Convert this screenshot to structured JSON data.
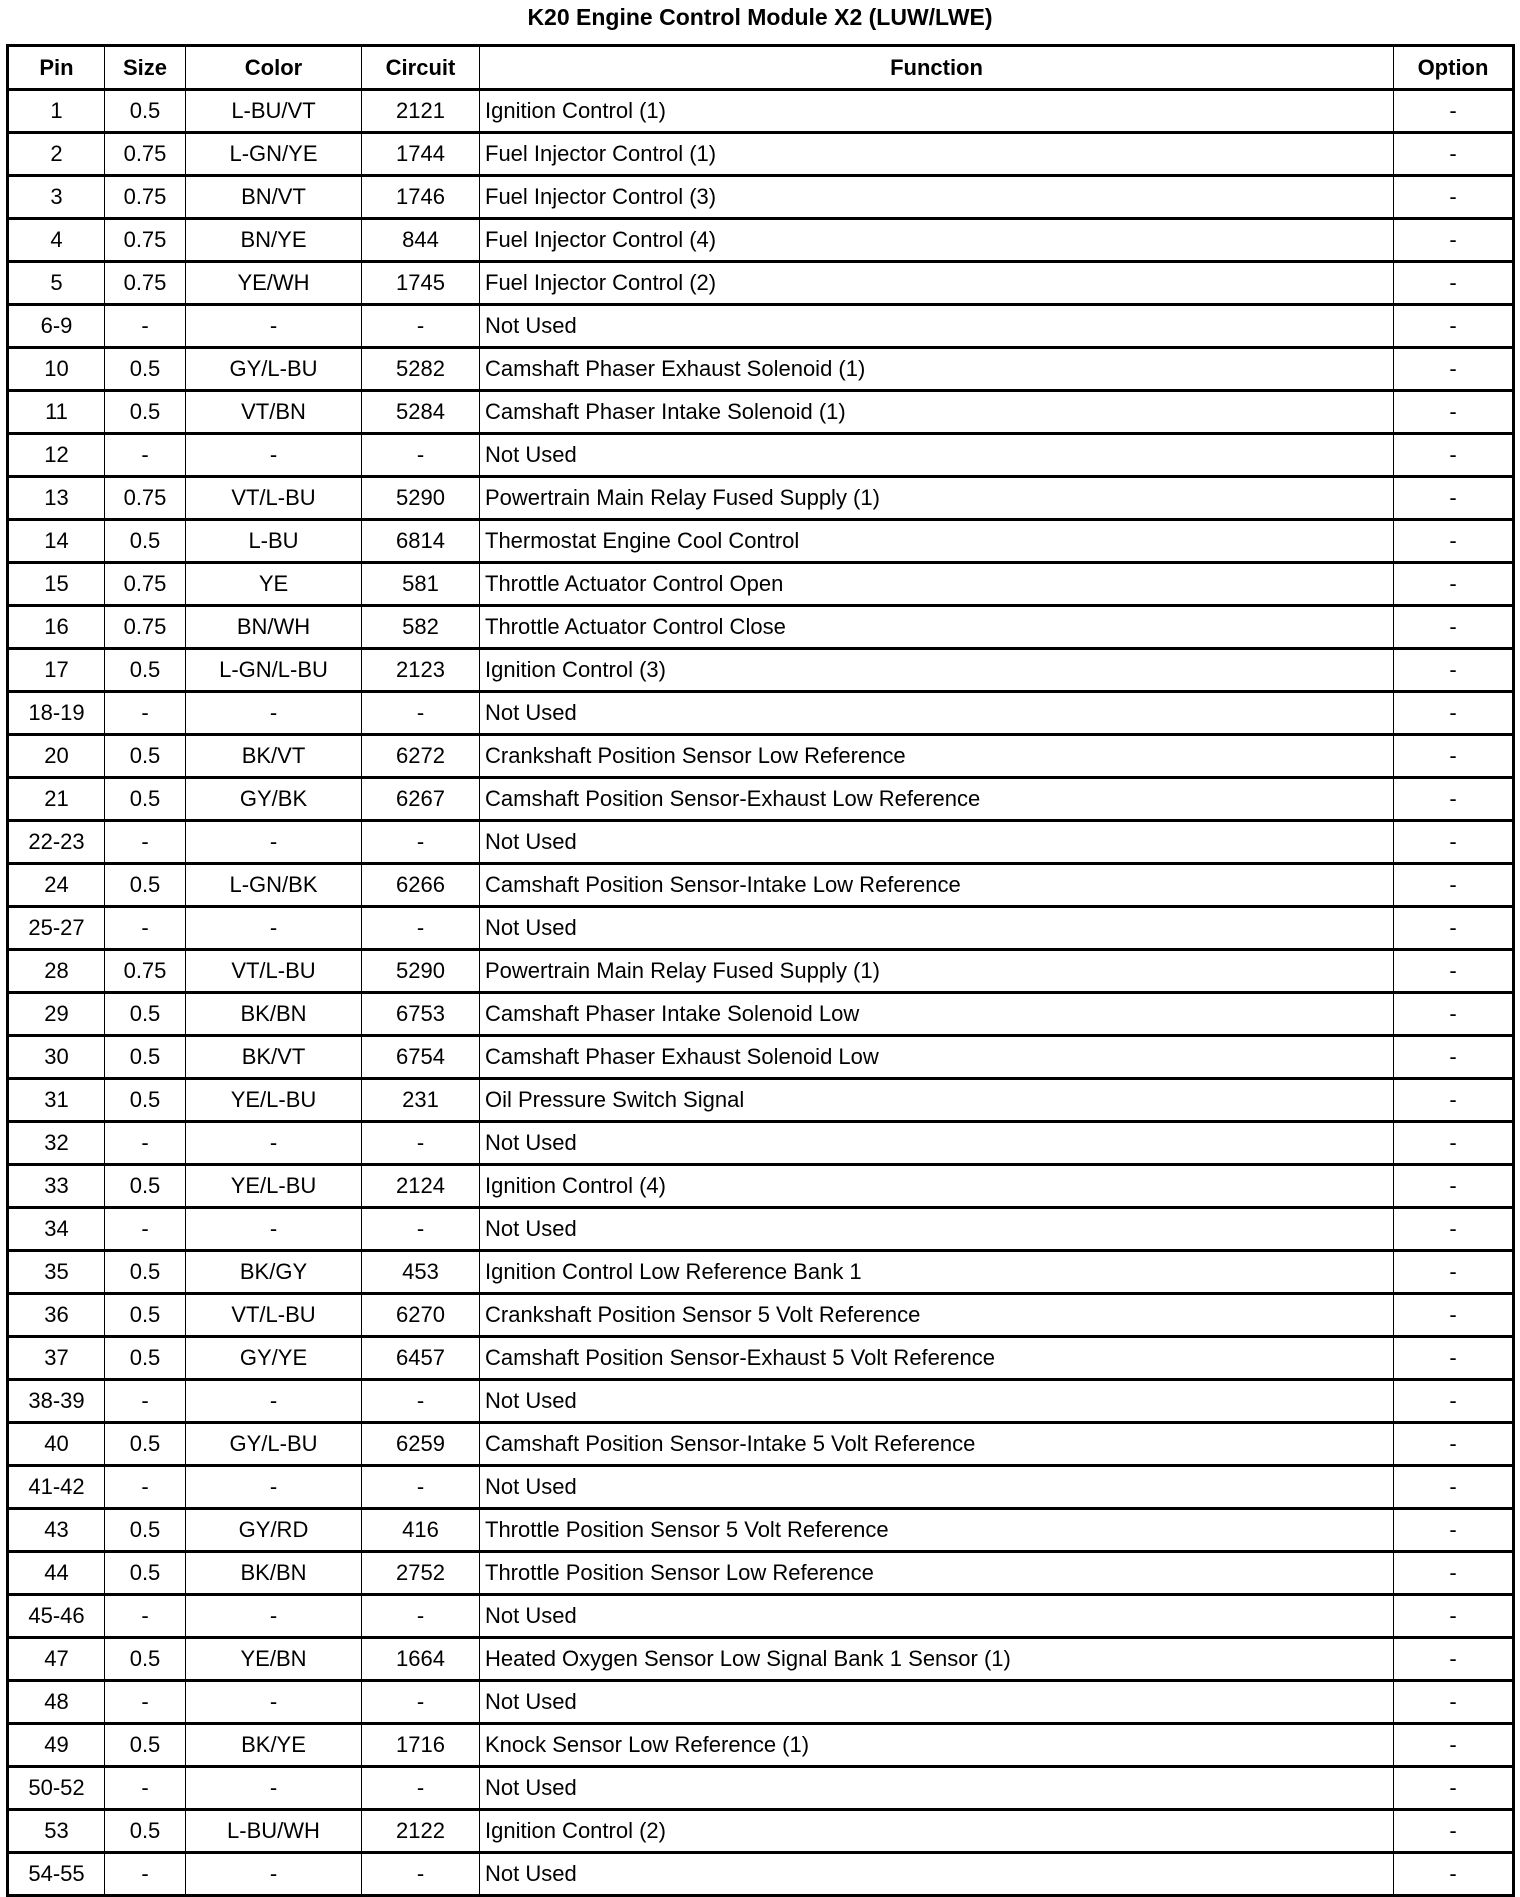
{
  "title": "K20 Engine Control Module X2 (LUW/LWE)",
  "columns": [
    "Pin",
    "Size",
    "Color",
    "Circuit",
    "Function",
    "Option"
  ],
  "rows": [
    [
      "1",
      "0.5",
      "L-BU/VT",
      "2121",
      "Ignition Control (1)",
      "-"
    ],
    [
      "2",
      "0.75",
      "L-GN/YE",
      "1744",
      "Fuel Injector Control (1)",
      "-"
    ],
    [
      "3",
      "0.75",
      "BN/VT",
      "1746",
      "Fuel Injector Control (3)",
      "-"
    ],
    [
      "4",
      "0.75",
      "BN/YE",
      "844",
      "Fuel Injector Control (4)",
      "-"
    ],
    [
      "5",
      "0.75",
      "YE/WH",
      "1745",
      "Fuel Injector Control (2)",
      "-"
    ],
    [
      "6-9",
      "-",
      "-",
      "-",
      "Not Used",
      "-"
    ],
    [
      "10",
      "0.5",
      "GY/L-BU",
      "5282",
      "Camshaft Phaser Exhaust Solenoid (1)",
      "-"
    ],
    [
      "11",
      "0.5",
      "VT/BN",
      "5284",
      "Camshaft Phaser Intake Solenoid (1)",
      "-"
    ],
    [
      "12",
      "-",
      "-",
      "-",
      "Not Used",
      "-"
    ],
    [
      "13",
      "0.75",
      "VT/L-BU",
      "5290",
      "Powertrain Main Relay Fused Supply (1)",
      "-"
    ],
    [
      "14",
      "0.5",
      "L-BU",
      "6814",
      "Thermostat Engine Cool Control",
      "-"
    ],
    [
      "15",
      "0.75",
      "YE",
      "581",
      "Throttle Actuator Control Open",
      "-"
    ],
    [
      "16",
      "0.75",
      "BN/WH",
      "582",
      "Throttle Actuator Control Close",
      "-"
    ],
    [
      "17",
      "0.5",
      "L-GN/L-BU",
      "2123",
      "Ignition Control (3)",
      "-"
    ],
    [
      "18-19",
      "-",
      "-",
      "-",
      "Not Used",
      "-"
    ],
    [
      "20",
      "0.5",
      "BK/VT",
      "6272",
      "Crankshaft Position Sensor Low Reference",
      "-"
    ],
    [
      "21",
      "0.5",
      "GY/BK",
      "6267",
      "Camshaft Position Sensor-Exhaust Low Reference",
      "-"
    ],
    [
      "22-23",
      "-",
      "-",
      "-",
      "Not Used",
      "-"
    ],
    [
      "24",
      "0.5",
      "L-GN/BK",
      "6266",
      "Camshaft Position Sensor-Intake Low Reference",
      "-"
    ],
    [
      "25-27",
      "-",
      "-",
      "-",
      "Not Used",
      "-"
    ],
    [
      "28",
      "0.75",
      "VT/L-BU",
      "5290",
      "Powertrain Main Relay Fused Supply (1)",
      "-"
    ],
    [
      "29",
      "0.5",
      "BK/BN",
      "6753",
      "Camshaft Phaser Intake Solenoid Low",
      "-"
    ],
    [
      "30",
      "0.5",
      "BK/VT",
      "6754",
      "Camshaft Phaser Exhaust Solenoid Low",
      "-"
    ],
    [
      "31",
      "0.5",
      "YE/L-BU",
      "231",
      "Oil Pressure Switch Signal",
      "-"
    ],
    [
      "32",
      "-",
      "-",
      "-",
      "Not Used",
      "-"
    ],
    [
      "33",
      "0.5",
      "YE/L-BU",
      "2124",
      "Ignition Control (4)",
      "-"
    ],
    [
      "34",
      "-",
      "-",
      "-",
      "Not Used",
      "-"
    ],
    [
      "35",
      "0.5",
      "BK/GY",
      "453",
      "Ignition Control Low Reference Bank 1",
      "-"
    ],
    [
      "36",
      "0.5",
      "VT/L-BU",
      "6270",
      "Crankshaft Position Sensor 5 Volt Reference",
      "-"
    ],
    [
      "37",
      "0.5",
      "GY/YE",
      "6457",
      "Camshaft Position Sensor-Exhaust 5 Volt Reference",
      "-"
    ],
    [
      "38-39",
      "-",
      "-",
      "-",
      "Not Used",
      "-"
    ],
    [
      "40",
      "0.5",
      "GY/L-BU",
      "6259",
      "Camshaft Position Sensor-Intake 5 Volt Reference",
      "-"
    ],
    [
      "41-42",
      "-",
      "-",
      "-",
      "Not Used",
      "-"
    ],
    [
      "43",
      "0.5",
      "GY/RD",
      "416",
      "Throttle Position Sensor 5 Volt Reference",
      "-"
    ],
    [
      "44",
      "0.5",
      "BK/BN",
      "2752",
      "Throttle Position Sensor Low Reference",
      "-"
    ],
    [
      "45-46",
      "-",
      "-",
      "-",
      "Not Used",
      "-"
    ],
    [
      "47",
      "0.5",
      "YE/BN",
      "1664",
      "Heated Oxygen Sensor Low Signal Bank 1 Sensor (1)",
      "-"
    ],
    [
      "48",
      "-",
      "-",
      "-",
      "Not Used",
      "-"
    ],
    [
      "49",
      "0.5",
      "BK/YE",
      "1716",
      "Knock Sensor Low Reference (1)",
      "-"
    ],
    [
      "50-52",
      "-",
      "-",
      "-",
      "Not Used",
      "-"
    ],
    [
      "53",
      "0.5",
      "L-BU/WH",
      "2122",
      "Ignition Control (2)",
      "-"
    ],
    [
      "54-55",
      "-",
      "-",
      "-",
      "Not Used",
      "-"
    ]
  ]
}
